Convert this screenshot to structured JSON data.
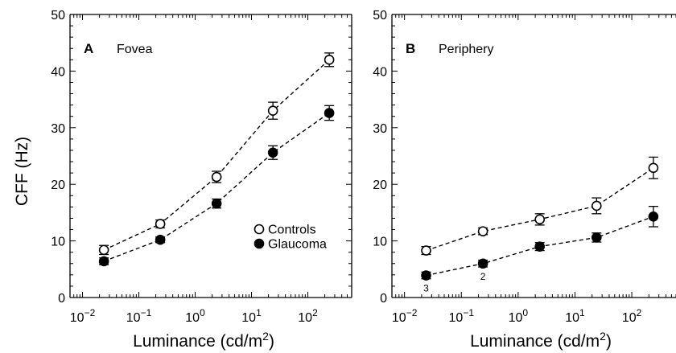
{
  "ylabel": "CFF (Hz)",
  "xlabel": "Luminance (cd/m",
  "xlabel_sup": "2",
  "xlabel_end": ")",
  "chart_data": [
    {
      "type": "scatter",
      "panel_letter": "A",
      "panel_name": "Fovea",
      "x_scale": "log",
      "xlim": [
        0.006,
        600
      ],
      "ylim": [
        0,
        50
      ],
      "y_ticks": [
        0,
        10,
        20,
        30,
        40,
        50
      ],
      "x_ticks": [
        {
          "value": 0.01,
          "base": "10",
          "exp": "−2"
        },
        {
          "value": 0.1,
          "base": "10",
          "exp": "−1"
        },
        {
          "value": 1,
          "base": "10",
          "exp": "0"
        },
        {
          "value": 10,
          "base": "10",
          "exp": "1"
        },
        {
          "value": 100,
          "base": "10",
          "exp": "2"
        }
      ],
      "legend": {
        "placement": "bottom-right",
        "entries": [
          "Controls",
          "Glaucoma"
        ]
      },
      "series": [
        {
          "name": "Controls",
          "marker": "open-circle",
          "line": "dashed",
          "x": [
            0.024,
            0.24,
            2.4,
            24,
            240
          ],
          "y": [
            8.4,
            13.0,
            21.3,
            33.0,
            42.0
          ],
          "err": [
            0.8,
            0.7,
            1.0,
            1.5,
            1.2
          ]
        },
        {
          "name": "Glaucoma",
          "marker": "filled-circle",
          "line": "dashed",
          "x": [
            0.024,
            0.24,
            2.4,
            24,
            240
          ],
          "y": [
            6.4,
            10.2,
            16.6,
            25.6,
            32.6
          ],
          "err": [
            0.6,
            0.5,
            0.8,
            1.2,
            1.3
          ]
        }
      ],
      "annotations": []
    },
    {
      "type": "scatter",
      "panel_letter": "B",
      "panel_name": "Periphery",
      "x_scale": "log",
      "xlim": [
        0.006,
        600
      ],
      "ylim": [
        0,
        50
      ],
      "y_ticks": [
        0,
        10,
        20,
        30,
        40,
        50
      ],
      "x_ticks": [
        {
          "value": 0.01,
          "base": "10",
          "exp": "−2"
        },
        {
          "value": 0.1,
          "base": "10",
          "exp": "−1"
        },
        {
          "value": 1,
          "base": "10",
          "exp": "0"
        },
        {
          "value": 10,
          "base": "10",
          "exp": "1"
        },
        {
          "value": 100,
          "base": "10",
          "exp": "2"
        }
      ],
      "legend": null,
      "series": [
        {
          "name": "Controls",
          "marker": "open-circle",
          "line": "dashed",
          "x": [
            0.024,
            0.24,
            2.4,
            24,
            240
          ],
          "y": [
            8.3,
            11.7,
            13.8,
            16.2,
            22.9
          ],
          "err": [
            0.7,
            0.6,
            1.0,
            1.4,
            1.9
          ]
        },
        {
          "name": "Glaucoma",
          "marker": "filled-circle",
          "line": "dashed",
          "x": [
            0.024,
            0.24,
            2.4,
            24,
            240
          ],
          "y": [
            3.9,
            6.0,
            9.0,
            10.6,
            14.3
          ],
          "err": [
            0.6,
            0.6,
            0.7,
            0.8,
            1.8
          ]
        }
      ],
      "annotations": [
        {
          "text": "3",
          "x": 0.024,
          "y": 3.9
        },
        {
          "text": "2",
          "x": 0.24,
          "y": 6.0
        }
      ]
    }
  ]
}
